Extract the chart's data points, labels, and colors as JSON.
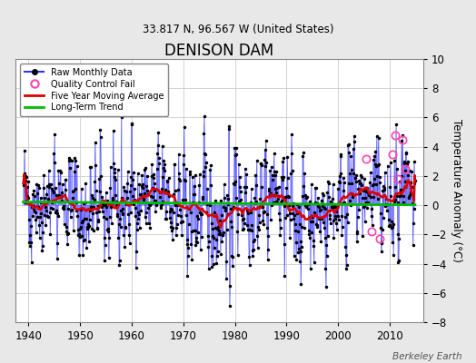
{
  "title": "DENISON DAM",
  "subtitle": "33.817 N, 96.567 W (United States)",
  "ylabel": "Temperature Anomaly (°C)",
  "attribution": "Berkeley Earth",
  "xlim": [
    1937.5,
    2016.5
  ],
  "ylim": [
    -8,
    10
  ],
  "yticks": [
    -8,
    -6,
    -4,
    -2,
    0,
    2,
    4,
    6,
    8,
    10
  ],
  "xticks": [
    1940,
    1950,
    1960,
    1970,
    1980,
    1990,
    2000,
    2010
  ],
  "bg_color": "#e8e8e8",
  "plot_bg_color": "#ffffff",
  "raw_line_color": "#3333ff",
  "raw_marker_color": "#000000",
  "ma_color": "#dd0000",
  "trend_color": "#00bb00",
  "qc_fail_color": "#ff44aa",
  "seed": 42,
  "start_year": 1939.0,
  "n_months": 912,
  "ma_window": 60,
  "long_term_slope": 0.0002,
  "long_term_intercept": 0.25
}
